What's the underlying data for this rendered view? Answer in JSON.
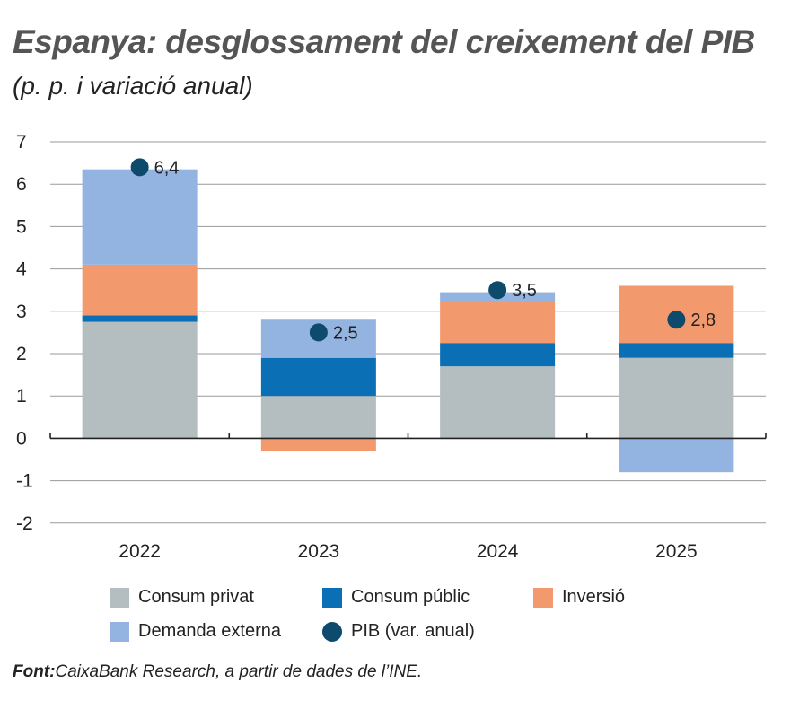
{
  "title": "Espanya: desglossament del creixement del PIB",
  "subtitle": "(p. p. i variació anual)",
  "source_label": "Font:",
  "source_text": "CaixaBank Research, a partir de dades de l’INE.",
  "colors": {
    "consum_privat": "#b4bdbf",
    "consum_public": "#0b6fb5",
    "inversio": "#f29a6e",
    "demanda_externa": "#93b4e0",
    "pib": "#0d4a6b"
  },
  "chart_data": {
    "type": "bar",
    "stacked": true,
    "categories": [
      "2022",
      "2023",
      "2024",
      "2025"
    ],
    "ylim": [
      -2,
      7
    ],
    "yticks": [
      "7",
      "6",
      "5",
      "4",
      "3",
      "2",
      "1",
      "0",
      "-1",
      "-2"
    ],
    "grid": true,
    "legend_position": "bottom",
    "series": [
      {
        "name": "Consum privat",
        "color_key": "consum_privat",
        "values": [
          2.75,
          1.0,
          1.7,
          1.9
        ]
      },
      {
        "name": "Consum públic",
        "color_key": "consum_public",
        "values": [
          0.15,
          0.9,
          0.55,
          0.35
        ]
      },
      {
        "name": "Inversió",
        "color_key": "inversio",
        "values": [
          1.2,
          -0.3,
          1.0,
          1.35
        ]
      },
      {
        "name": "Demanda externa",
        "color_key": "demanda_externa",
        "values": [
          2.25,
          0.9,
          0.2,
          -0.8
        ]
      }
    ],
    "pib": {
      "name": "PIB (var. anual)",
      "values": [
        6.4,
        2.5,
        3.5,
        2.8
      ],
      "labels": [
        "6,4",
        "2,5",
        "3,5",
        "2,8"
      ]
    }
  }
}
